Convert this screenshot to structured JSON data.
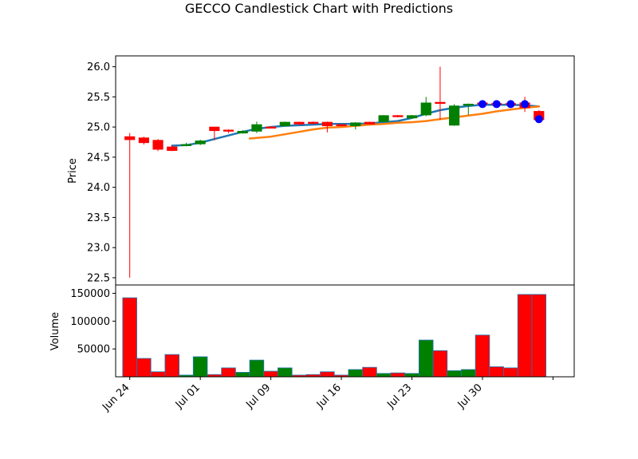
{
  "chart_data": {
    "type": "candlestick",
    "title": "GECCO Candlestick Chart with Predictions",
    "price_panel": {
      "ylabel": "Price",
      "ylim": [
        22.38,
        26.18
      ],
      "yticks": [
        22.5,
        23.0,
        23.5,
        24.0,
        24.5,
        25.0,
        25.5,
        26.0
      ],
      "ytick_labels": [
        "22.5",
        "23.0",
        "23.5",
        "24.0",
        "24.5",
        "25.0",
        "25.5",
        "26.0"
      ]
    },
    "volume_panel": {
      "ylabel": "Volume",
      "ylim": [
        0,
        165000
      ],
      "yticks": [
        50000,
        100000,
        150000
      ],
      "ytick_labels": [
        "50000",
        "100000",
        "150000"
      ]
    },
    "xlim": [
      0,
      32.5
    ],
    "xticks": [
      1,
      6,
      11,
      16,
      21,
      26,
      31
    ],
    "xtick_labels": [
      "Jun 24",
      "Jul 01",
      "Jul 09",
      "Jul 16",
      "Jul 23",
      "Jul 30",
      ""
    ],
    "colors": {
      "up": "#008000",
      "down": "#ff0000",
      "line1": "#1f77b4",
      "line2": "#ff7f0e",
      "prediction": "#0000ff"
    },
    "candles": [
      {
        "date": "Jun 24",
        "open": 24.84,
        "close": 24.79,
        "high": 24.9,
        "low": 22.5,
        "volume": 142000
      },
      {
        "date": "Jun 25",
        "open": 24.82,
        "close": 24.74,
        "high": 24.84,
        "low": 24.71,
        "volume": 33000
      },
      {
        "date": "Jun 26",
        "open": 24.78,
        "close": 24.63,
        "high": 24.8,
        "low": 24.6,
        "volume": 9000
      },
      {
        "date": "Jun 27",
        "open": 24.67,
        "close": 24.61,
        "high": 24.7,
        "low": 24.6,
        "volume": 40000
      },
      {
        "date": "Jun 28",
        "open": 24.69,
        "close": 24.71,
        "high": 24.74,
        "low": 24.68,
        "volume": 3000
      },
      {
        "date": "Jul 01",
        "open": 24.72,
        "close": 24.77,
        "high": 24.79,
        "low": 24.7,
        "volume": 36000
      },
      {
        "date": "Jul 02",
        "open": 25.0,
        "close": 24.94,
        "high": 25.0,
        "low": 24.78,
        "volume": 4000
      },
      {
        "date": "Jul 03",
        "open": 24.95,
        "close": 24.93,
        "high": 24.96,
        "low": 24.9,
        "volume": 16000
      },
      {
        "date": "Jul 05",
        "open": 24.9,
        "close": 24.93,
        "high": 24.95,
        "low": 24.89,
        "volume": 8000
      },
      {
        "date": "Jul 08",
        "open": 24.93,
        "close": 25.04,
        "high": 25.09,
        "low": 24.9,
        "volume": 30000
      },
      {
        "date": "Jul 09",
        "open": 25.0,
        "close": 24.99,
        "high": 25.01,
        "low": 24.98,
        "volume": 10000
      },
      {
        "date": "Jul 10",
        "open": 25.02,
        "close": 25.08,
        "high": 25.09,
        "low": 25.01,
        "volume": 16000
      },
      {
        "date": "Jul 11",
        "open": 25.08,
        "close": 25.05,
        "high": 25.09,
        "low": 25.03,
        "volume": 3000
      },
      {
        "date": "Jul 12",
        "open": 25.08,
        "close": 25.06,
        "high": 25.09,
        "low": 25.04,
        "volume": 4000
      },
      {
        "date": "Jul 15",
        "open": 25.08,
        "close": 25.02,
        "high": 25.09,
        "low": 24.91,
        "volume": 9000
      },
      {
        "date": "Jul 16",
        "open": 25.04,
        "close": 25.03,
        "high": 25.05,
        "low": 25.02,
        "volume": 3000
      },
      {
        "date": "Jul 17",
        "open": 25.02,
        "close": 25.07,
        "high": 25.08,
        "low": 24.96,
        "volume": 13000
      },
      {
        "date": "Jul 18",
        "open": 25.08,
        "close": 25.05,
        "high": 25.09,
        "low": 25.04,
        "volume": 17000
      },
      {
        "date": "Jul 19",
        "open": 25.09,
        "close": 25.19,
        "high": 25.2,
        "low": 25.08,
        "volume": 6000
      },
      {
        "date": "Jul 22",
        "open": 25.19,
        "close": 25.17,
        "high": 25.2,
        "low": 25.16,
        "volume": 7000
      },
      {
        "date": "Jul 23",
        "open": 25.15,
        "close": 25.19,
        "high": 25.2,
        "low": 25.14,
        "volume": 6000
      },
      {
        "date": "Jul 24",
        "open": 25.2,
        "close": 25.4,
        "high": 25.5,
        "low": 25.18,
        "volume": 66000
      },
      {
        "date": "Jul 25",
        "open": 25.41,
        "close": 25.4,
        "high": 26.0,
        "low": 25.12,
        "volume": 47000
      },
      {
        "date": "Jul 26",
        "open": 25.03,
        "close": 25.35,
        "high": 25.38,
        "low": 25.02,
        "volume": 11000
      },
      {
        "date": "Jul 29",
        "open": 25.36,
        "close": 25.38,
        "high": 25.39,
        "low": 25.2,
        "volume": 13000
      },
      {
        "date": "Jul 30",
        "open": 25.4,
        "close": 25.38,
        "high": 25.41,
        "low": 25.36,
        "volume": 75000
      },
      {
        "date": "Jul 31",
        "open": 25.39,
        "close": 25.37,
        "high": 25.4,
        "low": 25.36,
        "volume": 18000
      },
      {
        "date": "Aug 01",
        "open": 25.39,
        "close": 25.37,
        "high": 25.4,
        "low": 25.35,
        "volume": 16000
      },
      {
        "date": "Aug 02",
        "open": 25.4,
        "close": 25.32,
        "high": 25.5,
        "low": 25.25,
        "volume": 148000
      },
      {
        "date": "Aug 05",
        "open": 25.26,
        "close": 25.12,
        "high": 25.28,
        "low": 25.1,
        "volume": 148000
      }
    ],
    "line_series": [
      {
        "x": [
          4,
          5,
          6,
          7,
          8,
          9,
          10,
          11,
          12,
          13,
          14,
          15,
          16,
          17,
          18,
          19,
          20,
          21,
          22,
          23,
          24,
          25,
          26,
          27,
          28,
          29,
          30
        ],
        "y": [
          24.69,
          24.7,
          24.74,
          24.8,
          24.86,
          24.92,
          24.97,
          25.0,
          25.02,
          25.03,
          25.04,
          25.05,
          25.05,
          25.05,
          25.06,
          25.08,
          25.1,
          25.15,
          25.22,
          25.28,
          25.32,
          25.35,
          25.37,
          25.37,
          25.37,
          25.36,
          25.34
        ]
      },
      {
        "x": [
          9.5,
          11,
          12,
          13,
          14,
          15,
          16,
          17,
          18,
          19,
          20,
          21,
          22,
          23,
          24,
          25,
          26,
          27,
          28,
          29,
          30
        ],
        "y": [
          24.81,
          24.84,
          24.88,
          24.92,
          24.96,
          24.99,
          25.0,
          25.02,
          25.04,
          25.05,
          25.07,
          25.08,
          25.1,
          25.13,
          25.16,
          25.19,
          25.22,
          25.26,
          25.29,
          25.32,
          25.34
        ]
      }
    ],
    "predictions": [
      {
        "x": 26,
        "y": 25.38
      },
      {
        "x": 27,
        "y": 25.38
      },
      {
        "x": 28,
        "y": 25.38
      },
      {
        "x": 29,
        "y": 25.38
      },
      {
        "x": 30,
        "y": 25.13
      }
    ]
  }
}
